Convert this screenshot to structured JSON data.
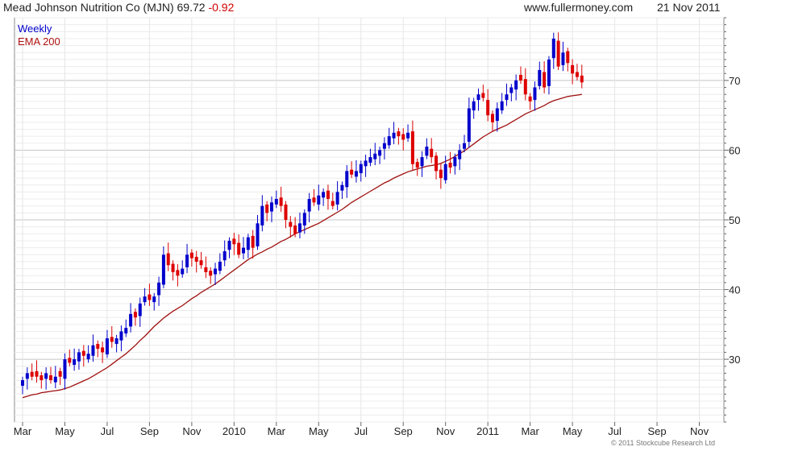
{
  "header": {
    "title": "Mead Johnson Nutrition Co (MJN) 69.72",
    "change": "-0.92",
    "website": "www.fullermoney.com",
    "date": "21 Nov 2011"
  },
  "legend": {
    "interval": "Weekly",
    "indicator": "EMA 200",
    "interval_color": "#0000cc",
    "indicator_color": "#b01010"
  },
  "copyright": "© 2011 Stockcube Research Ltd",
  "chart_data": {
    "type": "candlestick",
    "interval": "weekly",
    "up_color": "#0000cc",
    "down_color": "#dd0000",
    "ema_color": "#a01010",
    "grid": true,
    "ylim": [
      21,
      79
    ],
    "y_ticks": [
      30,
      40,
      50,
      60,
      70
    ],
    "y_axis_side": "right",
    "x_ticks": [
      {
        "label": "Mar",
        "week": 0
      },
      {
        "label": "May",
        "week": 9
      },
      {
        "label": "Jul",
        "week": 18
      },
      {
        "label": "Sep",
        "week": 27
      },
      {
        "label": "Nov",
        "week": 36
      },
      {
        "label": "2010",
        "week": 45
      },
      {
        "label": "Mar",
        "week": 54
      },
      {
        "label": "May",
        "week": 63
      },
      {
        "label": "Jul",
        "week": 72
      },
      {
        "label": "Sep",
        "week": 81
      },
      {
        "label": "Nov",
        "week": 90
      },
      {
        "label": "2011",
        "week": 99
      },
      {
        "label": "Mar",
        "week": 108
      },
      {
        "label": "May",
        "week": 117
      },
      {
        "label": "Jul",
        "week": 126
      },
      {
        "label": "Sep",
        "week": 135
      },
      {
        "label": "Nov",
        "week": 144
      }
    ],
    "close": [
      27.0,
      28.0,
      27.5,
      27.5,
      27.0,
      28.0,
      27.0,
      27.5,
      27.5,
      30.0,
      29.5,
      30.0,
      31.0,
      30.5,
      30.8,
      32.0,
      31.5,
      31.0,
      33.0,
      32.5,
      33.0,
      34.0,
      34.5,
      36.5,
      36.0,
      38.0,
      39.0,
      38.5,
      39.0,
      41.0,
      45.0,
      43.5,
      42.5,
      42.0,
      43.0,
      45.0,
      44.5,
      44.0,
      43.5,
      42.5,
      42.0,
      43.0,
      44.0,
      45.5,
      47.0,
      46.5,
      45.0,
      46.0,
      47.5,
      46.0,
      49.5,
      52.0,
      51.0,
      52.5,
      53.0,
      52.0,
      50.0,
      49.0,
      48.0,
      49.5,
      51.0,
      53.0,
      52.5,
      53.5,
      54.0,
      53.0,
      52.0,
      54.0,
      55.0,
      57.0,
      56.5,
      57.0,
      58.0,
      58.5,
      59.0,
      59.5,
      60.0,
      61.0,
      62.0,
      62.5,
      62.0,
      61.5,
      62.5,
      58.0,
      57.5,
      59.0,
      60.5,
      59.0,
      57.0,
      56.0,
      58.0,
      57.5,
      59.0,
      60.0,
      61.0,
      66.0,
      67.0,
      68.0,
      67.5,
      65.0,
      64.0,
      66.0,
      67.0,
      68.0,
      69.0,
      70.0,
      70.0,
      68.0,
      67.0,
      69.0,
      71.5,
      69.0,
      73.0,
      76.0,
      72.0,
      74.0,
      72.5,
      71.0,
      70.5,
      69.72
    ],
    "ema_200": [
      24.5,
      24.7,
      24.9,
      25.0,
      25.2,
      25.3,
      25.4,
      25.5,
      25.6,
      25.8,
      26.0,
      26.3,
      26.6,
      26.9,
      27.2,
      27.6,
      28.0,
      28.4,
      28.8,
      29.3,
      29.8,
      30.3,
      30.8,
      31.4,
      32.0,
      32.7,
      33.3,
      34.0,
      34.7,
      35.3,
      35.9,
      36.4,
      36.9,
      37.3,
      37.7,
      38.2,
      38.7,
      39.1,
      39.6,
      40.0,
      40.4,
      40.8,
      41.3,
      41.8,
      42.3,
      42.8,
      43.3,
      43.8,
      44.3,
      44.7,
      45.1,
      45.4,
      45.8,
      46.1,
      46.5,
      46.9,
      47.2,
      47.6,
      48.0,
      48.3,
      48.6,
      48.9,
      49.2,
      49.5,
      49.9,
      50.3,
      50.7,
      51.1,
      51.5,
      52.0,
      52.5,
      52.9,
      53.3,
      53.7,
      54.1,
      54.5,
      54.9,
      55.3,
      55.6,
      56.0,
      56.3,
      56.6,
      56.9,
      57.1,
      57.3,
      57.5,
      57.7,
      57.8,
      57.9,
      58.1,
      58.4,
      58.7,
      59.1,
      59.5,
      59.9,
      60.4,
      60.9,
      61.4,
      61.9,
      62.3,
      62.7,
      63.0,
      63.3,
      63.6,
      64.0,
      64.4,
      64.8,
      65.2,
      65.5,
      65.8,
      66.1,
      66.4,
      66.8,
      67.1,
      67.3,
      67.5,
      67.7,
      67.8,
      67.9,
      68.0
    ]
  }
}
